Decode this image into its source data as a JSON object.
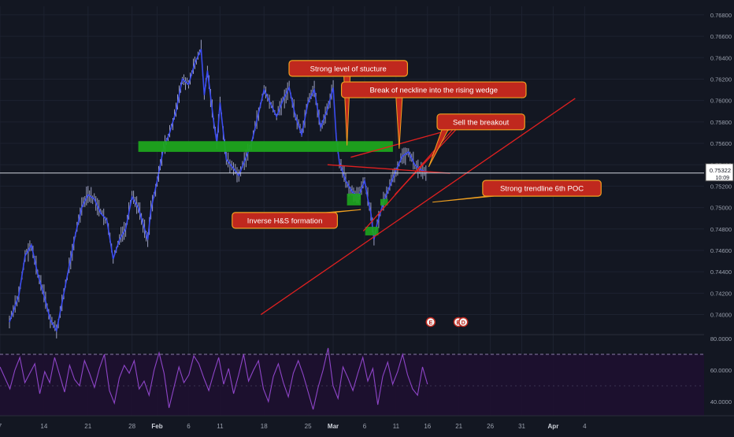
{
  "chart_data": {
    "type": "line",
    "instrument_kind": "forex-candlestick-chart",
    "colors": {
      "background": "#131722",
      "candles": "#3b4cf0",
      "candle_wicks": "#c9cdf5",
      "support_zone": "#1ea51e",
      "trendlines": "#e02020",
      "callout_fill": "#c0281e",
      "callout_border": "#f0a020",
      "callout_text": "#ffffff",
      "rsi_line": "#8e45c8",
      "rsi_band": "#1e1030",
      "grid": "#1d2230",
      "axis_text": "#9aa0ad",
      "last_price_line": "#cfd3dc"
    },
    "price_axis": {
      "range": [
        0.7382,
        0.7688
      ],
      "ticks": [
        "0.76800",
        "0.76600",
        "0.76400",
        "0.76200",
        "0.76000",
        "0.75800",
        "0.75600",
        "0.75400",
        "0.75200",
        "0.75000",
        "0.74800",
        "0.74600",
        "0.74400",
        "0.74200",
        "0.74000"
      ],
      "tick_values": [
        0.768,
        0.766,
        0.764,
        0.762,
        0.76,
        0.758,
        0.756,
        0.754,
        0.752,
        0.75,
        0.748,
        0.746,
        0.744,
        0.742,
        0.74
      ]
    },
    "last_price": {
      "label": "0.75322",
      "value": 0.75322,
      "countdown": "10:09"
    },
    "rsi_axis": {
      "range": [
        31,
        82
      ],
      "ticks": [
        "80.0000",
        "60.0000",
        "40.0000"
      ],
      "tick_values": [
        80,
        60,
        40
      ],
      "band": [
        30,
        70
      ]
    },
    "x_axis": {
      "span_days": [
        0,
        112
      ],
      "ticks": [
        {
          "label": "7",
          "day": 0
        },
        {
          "label": "14",
          "day": 7
        },
        {
          "label": "21",
          "day": 14
        },
        {
          "label": "28",
          "day": 21
        },
        {
          "label": "Feb",
          "day": 25
        },
        {
          "label": "6",
          "day": 30
        },
        {
          "label": "11",
          "day": 35
        },
        {
          "label": "18",
          "day": 42
        },
        {
          "label": "25",
          "day": 49
        },
        {
          "label": "Mar",
          "day": 53
        },
        {
          "label": "6",
          "day": 58
        },
        {
          "label": "11",
          "day": 63
        },
        {
          "label": "16",
          "day": 68
        },
        {
          "label": "21",
          "day": 73
        },
        {
          "label": "26",
          "day": 78
        },
        {
          "label": "31",
          "day": 83
        },
        {
          "label": "Apr",
          "day": 88
        },
        {
          "label": "4",
          "day": 93
        }
      ]
    },
    "price_path": {
      "days": [
        1.5,
        3,
        4,
        5,
        6,
        7,
        8,
        9,
        11,
        12,
        13,
        14,
        15,
        16,
        17,
        18,
        19,
        20,
        21,
        22,
        23,
        23.5,
        24,
        25,
        26,
        27,
        28,
        29,
        30,
        31,
        32,
        32.5,
        33,
        34,
        34.5,
        35,
        36,
        38,
        40,
        42,
        44,
        45,
        46,
        47,
        48,
        49,
        50,
        51,
        52,
        53,
        53.5,
        54,
        55,
        56,
        57,
        58,
        58.5,
        59,
        59.5,
        60,
        61,
        62,
        63,
        64,
        65,
        66,
        67,
        68
      ],
      "prices": [
        0.7393,
        0.7418,
        0.7455,
        0.7465,
        0.7438,
        0.7418,
        0.7395,
        0.7385,
        0.7445,
        0.7475,
        0.75,
        0.7512,
        0.7508,
        0.7495,
        0.7488,
        0.7452,
        0.747,
        0.748,
        0.751,
        0.75,
        0.748,
        0.747,
        0.7498,
        0.7525,
        0.7555,
        0.757,
        0.759,
        0.762,
        0.7615,
        0.7635,
        0.7648,
        0.7605,
        0.7628,
        0.758,
        0.756,
        0.7598,
        0.7545,
        0.753,
        0.756,
        0.761,
        0.7585,
        0.76,
        0.7612,
        0.7585,
        0.7568,
        0.7598,
        0.761,
        0.7575,
        0.759,
        0.7612,
        0.7565,
        0.7542,
        0.7525,
        0.7515,
        0.751,
        0.7525,
        0.7508,
        0.7495,
        0.747,
        0.7485,
        0.7505,
        0.752,
        0.7535,
        0.7548,
        0.7552,
        0.754,
        0.7535,
        0.7533
      ]
    },
    "rsi_values": [
      62,
      55,
      48,
      60,
      68,
      52,
      58,
      64,
      45,
      59,
      52,
      68,
      57,
      46,
      63,
      54,
      50,
      66,
      58,
      49,
      61,
      70,
      47,
      39,
      55,
      63,
      58,
      66,
      48,
      53,
      44,
      60,
      71,
      58,
      36,
      49,
      62,
      52,
      57,
      69,
      64,
      55,
      47,
      58,
      68,
      51,
      61,
      45,
      57,
      70,
      53,
      60,
      66,
      48,
      40,
      56,
      64,
      52,
      43,
      58,
      66,
      57,
      46,
      35,
      49,
      60,
      74,
      50,
      42,
      62,
      55,
      47,
      58,
      68,
      53,
      61,
      38,
      56,
      65,
      51,
      59,
      70,
      57,
      48,
      44,
      62,
      51
    ],
    "rsi_value_range_days": [
      0,
      68
    ],
    "support_zone": {
      "days": [
        22,
        62.5
      ],
      "price_range": [
        0.7552,
        0.7562
      ]
    },
    "hs_boxes": [
      {
        "days": [
          55.2,
          57.4
        ],
        "price_range": [
          0.7502,
          0.7513
        ]
      },
      {
        "days": [
          58.1,
          60.2
        ],
        "price_range": [
          0.7474,
          0.7482
        ]
      },
      {
        "days": [
          60.5,
          61.7
        ],
        "price_range": [
          0.7502,
          0.7508
        ]
      }
    ],
    "trendlines": [
      {
        "from": [
          41.5,
          0.74
        ],
        "to": [
          91.5,
          0.7602
        ]
      },
      {
        "from": [
          57.8,
          0.7478
        ],
        "to": [
          73.1,
          0.758
        ]
      },
      {
        "from": [
          55.8,
          0.7547
        ],
        "to": [
          73.1,
          0.7575
        ]
      },
      {
        "from": [
          52.1,
          0.754
        ],
        "to": [
          71.6,
          0.7532
        ]
      },
      {
        "from": [
          62.8,
          0.7512
        ],
        "to": [
          73.2,
          0.7577
        ]
      }
    ],
    "annotations": [
      {
        "text": "Strong level of stucture",
        "box_day": 55.4,
        "box_price": 0.763,
        "target": [
          55.2,
          0.7558
        ]
      },
      {
        "text": "Break of neckline into the rising wedge",
        "box_day": 69,
        "box_price": 0.761,
        "target": [
          63.5,
          0.7555
        ]
      },
      {
        "text": "Sell the breakout",
        "box_day": 76.5,
        "box_price": 0.758,
        "target": [
          68.2,
          0.7538
        ]
      },
      {
        "text": "Inverse H&S formation",
        "box_day": 45.3,
        "box_price": 0.7488,
        "target": [
          57.4,
          0.7498
        ]
      },
      {
        "text": "Strong trendline 6th POC",
        "box_day": 86.2,
        "box_price": 0.7518,
        "target": [
          68.8,
          0.7505
        ]
      }
    ],
    "event_markers": [
      {
        "day": 68.5,
        "glyph": "E"
      },
      {
        "day": 72.9,
        "glyph": "E"
      },
      {
        "day": 73.7,
        "glyph": "D"
      }
    ]
  }
}
